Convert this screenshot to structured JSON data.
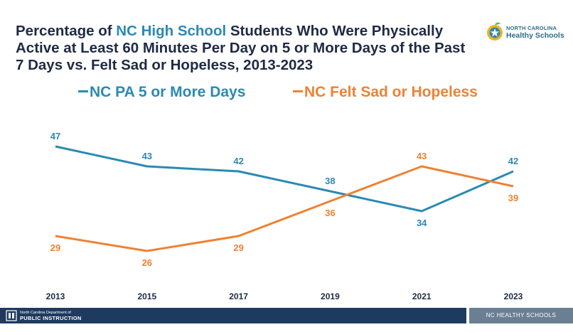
{
  "header": {
    "title_part1": "Percentage of ",
    "title_highlight": "NC High School",
    "title_part2": " Students Who Were Physically Active at Least 60 Minutes Per Day on 5 or More Days of the Past 7 Days vs. Felt Sad or Hopeless, 2013-2023"
  },
  "logo": {
    "line1": "NORTH CAROLINA",
    "line2": "Healthy Schools"
  },
  "footer": {
    "dpi_line1": "North Carolina Department of",
    "dpi_line2": "PUBLIC INSTRUCTION",
    "right_label": "NC HEALTHY SCHOOLS"
  },
  "chart_data": {
    "type": "line",
    "x": [
      "2013",
      "2015",
      "2017",
      "2019",
      "2021",
      "2023"
    ],
    "series": [
      {
        "name": "NC PA 5 or More Days",
        "color": "#2a8ab3",
        "values": [
          47,
          43,
          42,
          38,
          34,
          42
        ]
      },
      {
        "name": "NC Felt Sad or Hopeless",
        "color": "#ee8233",
        "values": [
          29,
          26,
          29,
          36,
          43,
          39
        ]
      }
    ],
    "ylim": [
      15,
      55
    ],
    "grid": false,
    "legend_position": "top"
  }
}
